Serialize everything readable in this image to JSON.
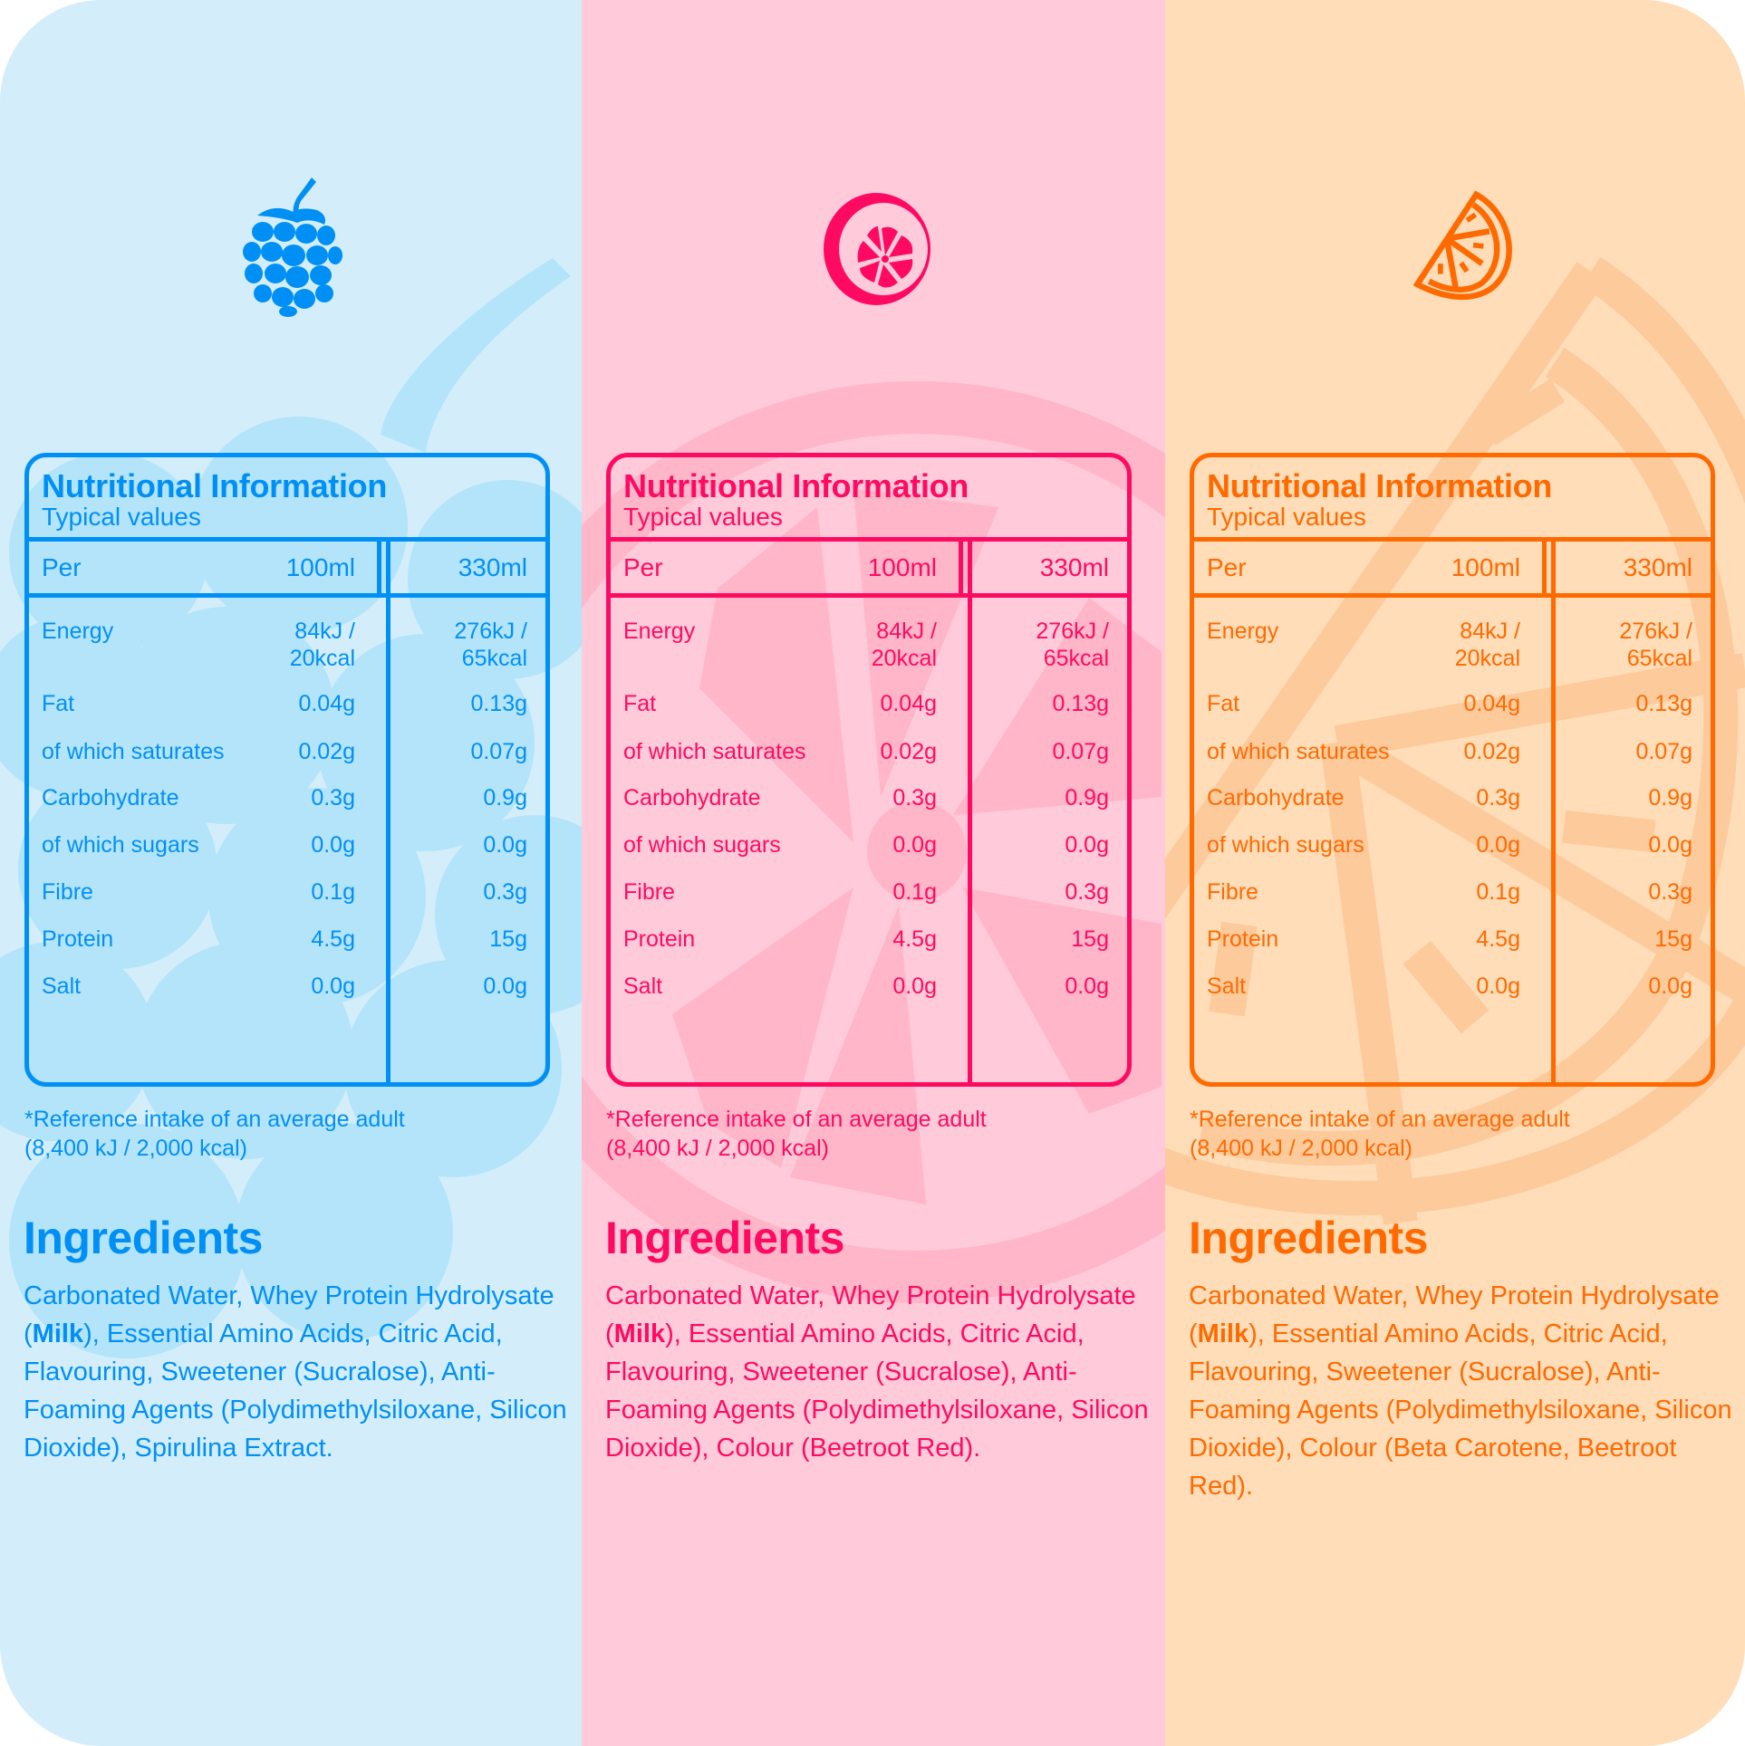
{
  "panels": [
    {
      "flavour_icon": "raspberry-icon",
      "colors": {
        "bg": "#D3EEFA",
        "accent": "#0090F5",
        "watermark": "#B3E4FA"
      },
      "nutrition": {
        "title": "Nutritional Information",
        "subtitle": "Typical values",
        "header": {
          "label": "Per",
          "col_a": "100ml",
          "col_b": "330ml"
        },
        "rows": [
          {
            "label": "Energy",
            "a": "84kJ /\n20kcal",
            "b": "276kJ /\n65kcal"
          },
          {
            "label": "Fat",
            "a": "0.04g",
            "b": "0.13g"
          },
          {
            "label": "of which saturates",
            "a": "0.02g",
            "b": "0.07g"
          },
          {
            "label": "Carbohydrate",
            "a": "0.3g",
            "b": "0.9g"
          },
          {
            "label": "of which sugars",
            "a": "0.0g",
            "b": "0.0g"
          },
          {
            "label": "Fibre",
            "a": "0.1g",
            "b": "0.3g"
          },
          {
            "label": "Protein",
            "a": "4.5g",
            "b": "15g"
          },
          {
            "label": "Salt",
            "a": "0.0g",
            "b": "0.0g"
          }
        ],
        "footnote_line1": "*Reference intake of an average adult",
        "footnote_line2": "(8,400 kJ / 2,000 kcal)"
      },
      "ingredients": {
        "heading": "Ingredients",
        "before_allergen": "Carbonated Water, Whey Protein Hydrolysate (",
        "allergen": "Milk",
        "after_allergen": "), Essential Amino Acids, Citric Acid, Flavouring, Sweetener (Sucralose), Anti-Foaming Agents (Polydimethylsiloxane, Silicon Dioxide), Spirulina Extract."
      }
    },
    {
      "flavour_icon": "grapefruit-icon",
      "colors": {
        "bg": "#FFCAD9",
        "accent": "#FF0A62",
        "watermark": "#FFB6C9"
      },
      "nutrition": {
        "title": "Nutritional Information",
        "subtitle": "Typical values",
        "header": {
          "label": "Per",
          "col_a": "100ml",
          "col_b": "330ml"
        },
        "rows": [
          {
            "label": "Energy",
            "a": "84kJ /\n20kcal",
            "b": "276kJ /\n65kcal"
          },
          {
            "label": "Fat",
            "a": "0.04g",
            "b": "0.13g"
          },
          {
            "label": "of which saturates",
            "a": "0.02g",
            "b": "0.07g"
          },
          {
            "label": "Carbohydrate",
            "a": "0.3g",
            "b": "0.9g"
          },
          {
            "label": "of which sugars",
            "a": "0.0g",
            "b": "0.0g"
          },
          {
            "label": "Fibre",
            "a": "0.1g",
            "b": "0.3g"
          },
          {
            "label": "Protein",
            "a": "4.5g",
            "b": "15g"
          },
          {
            "label": "Salt",
            "a": "0.0g",
            "b": "0.0g"
          }
        ],
        "footnote_line1": "*Reference intake of an average adult",
        "footnote_line2": "(8,400 kJ / 2,000 kcal)"
      },
      "ingredients": {
        "heading": "Ingredients",
        "before_allergen": "Carbonated Water, Whey Protein Hydrolysate (",
        "allergen": "Milk",
        "after_allergen": "), Essential Amino Acids, Citric Acid, Flavouring, Sweetener (Sucralose), Anti-Foaming Agents (Polydimethylsiloxane, Silicon Dioxide), Colour (Beetroot Red)."
      }
    },
    {
      "flavour_icon": "orange-slice-icon",
      "colors": {
        "bg": "#FEDDB8",
        "accent": "#FF6A00",
        "watermark": "#FDCA9C"
      },
      "nutrition": {
        "title": "Nutritional Information",
        "subtitle": "Typical values",
        "header": {
          "label": "Per",
          "col_a": "100ml",
          "col_b": "330ml"
        },
        "rows": [
          {
            "label": "Energy",
            "a": "84kJ /\n20kcal",
            "b": "276kJ /\n65kcal"
          },
          {
            "label": "Fat",
            "a": "0.04g",
            "b": "0.13g"
          },
          {
            "label": "of which saturates",
            "a": "0.02g",
            "b": "0.07g"
          },
          {
            "label": "Carbohydrate",
            "a": "0.3g",
            "b": "0.9g"
          },
          {
            "label": "of which sugars",
            "a": "0.0g",
            "b": "0.0g"
          },
          {
            "label": "Fibre",
            "a": "0.1g",
            "b": "0.3g"
          },
          {
            "label": "Protein",
            "a": "4.5g",
            "b": "15g"
          },
          {
            "label": "Salt",
            "a": "0.0g",
            "b": "0.0g"
          }
        ],
        "footnote_line1": "*Reference intake of an average adult",
        "footnote_line2": "(8,400 kJ / 2,000 kcal)"
      },
      "ingredients": {
        "heading": "Ingredients",
        "before_allergen": "Carbonated Water, Whey Protein Hydrolysate (",
        "allergen": "Milk",
        "after_allergen": "), Essential Amino Acids, Citric Acid, Flavouring, Sweetener (Sucralose), Anti-Foaming Agents (Polydimethylsiloxane, Silicon Dioxide), Colour (Beta Carotene, Beetroot Red)."
      }
    }
  ]
}
